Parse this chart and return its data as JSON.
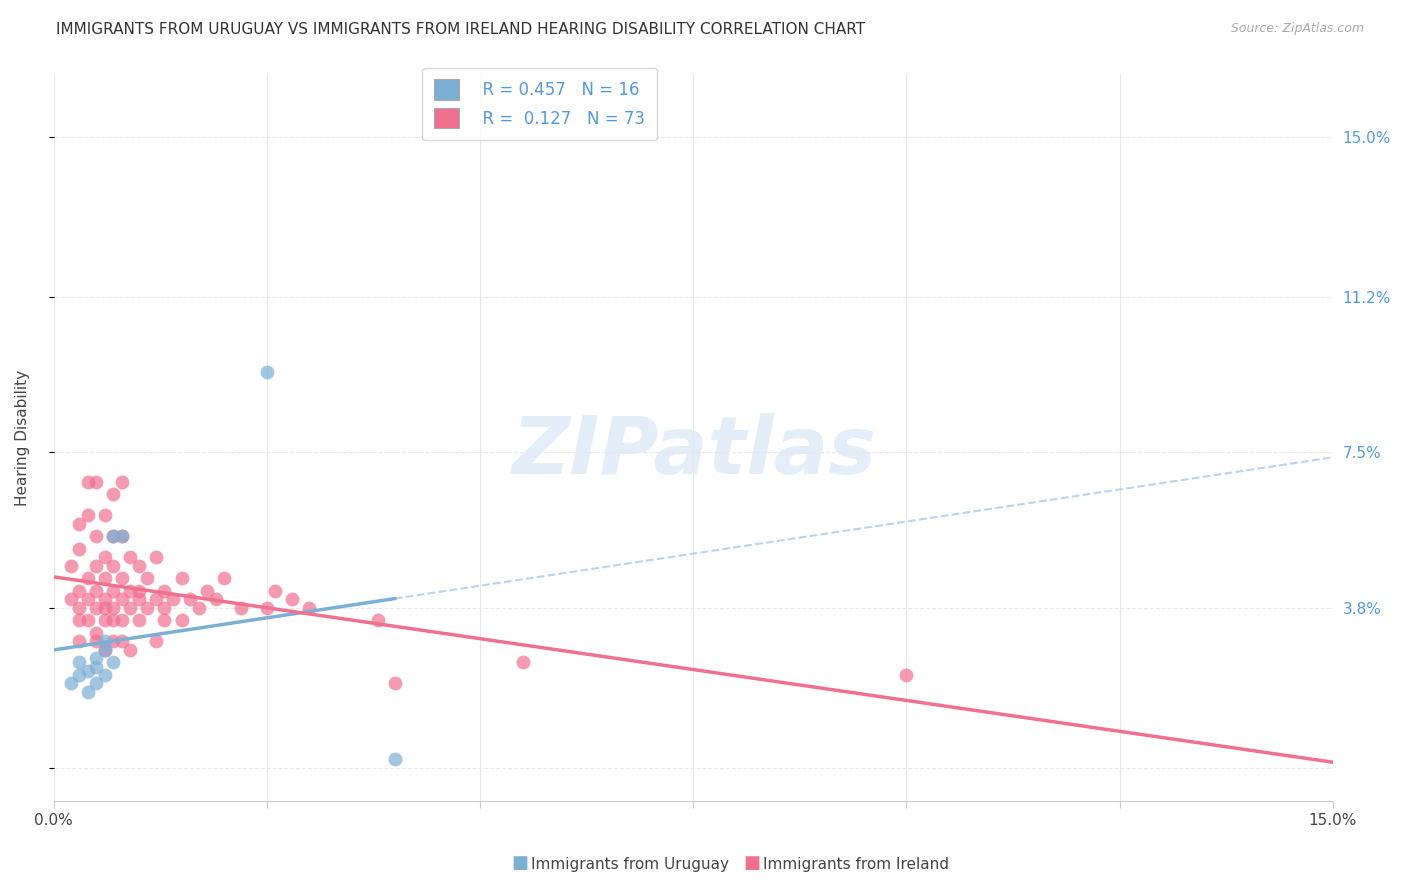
{
  "title": "IMMIGRANTS FROM URUGUAY VS IMMIGRANTS FROM IRELAND HEARING DISABILITY CORRELATION CHART",
  "source": "Source: ZipAtlas.com",
  "ylabel": "Hearing Disability",
  "xlim": [
    0.0,
    0.15
  ],
  "ylim": [
    -0.008,
    0.165
  ],
  "yticks": [
    0.0,
    0.038,
    0.075,
    0.112,
    0.15
  ],
  "ytick_labels": [
    "",
    "3.8%",
    "7.5%",
    "11.2%",
    "15.0%"
  ],
  "xticks": [
    0.0,
    0.025,
    0.05,
    0.075,
    0.1,
    0.125,
    0.15
  ],
  "xtick_labels": [
    "0.0%",
    "",
    "",
    "",
    "",
    "",
    "15.0%"
  ],
  "watermark": "ZIPatlas",
  "color_uruguay": "#7bafd4",
  "color_ireland": "#f07090",
  "background_color": "#ffffff",
  "grid_color": "#e8e8e8",
  "uruguay_scatter": [
    [
      0.002,
      0.02
    ],
    [
      0.003,
      0.022
    ],
    [
      0.003,
      0.025
    ],
    [
      0.004,
      0.018
    ],
    [
      0.004,
      0.023
    ],
    [
      0.005,
      0.02
    ],
    [
      0.005,
      0.024
    ],
    [
      0.005,
      0.026
    ],
    [
      0.006,
      0.022
    ],
    [
      0.006,
      0.028
    ],
    [
      0.006,
      0.03
    ],
    [
      0.007,
      0.025
    ],
    [
      0.007,
      0.055
    ],
    [
      0.008,
      0.055
    ],
    [
      0.025,
      0.094
    ],
    [
      0.04,
      0.002
    ]
  ],
  "ireland_scatter": [
    [
      0.002,
      0.048
    ],
    [
      0.002,
      0.04
    ],
    [
      0.003,
      0.035
    ],
    [
      0.003,
      0.042
    ],
    [
      0.003,
      0.052
    ],
    [
      0.003,
      0.03
    ],
    [
      0.003,
      0.058
    ],
    [
      0.003,
      0.038
    ],
    [
      0.004,
      0.06
    ],
    [
      0.004,
      0.045
    ],
    [
      0.004,
      0.068
    ],
    [
      0.004,
      0.04
    ],
    [
      0.004,
      0.035
    ],
    [
      0.005,
      0.038
    ],
    [
      0.005,
      0.042
    ],
    [
      0.005,
      0.03
    ],
    [
      0.005,
      0.055
    ],
    [
      0.005,
      0.048
    ],
    [
      0.005,
      0.032
    ],
    [
      0.005,
      0.068
    ],
    [
      0.006,
      0.035
    ],
    [
      0.006,
      0.04
    ],
    [
      0.006,
      0.045
    ],
    [
      0.006,
      0.05
    ],
    [
      0.006,
      0.028
    ],
    [
      0.006,
      0.038
    ],
    [
      0.006,
      0.06
    ],
    [
      0.007,
      0.035
    ],
    [
      0.007,
      0.042
    ],
    [
      0.007,
      0.048
    ],
    [
      0.007,
      0.03
    ],
    [
      0.007,
      0.055
    ],
    [
      0.007,
      0.065
    ],
    [
      0.007,
      0.038
    ],
    [
      0.008,
      0.04
    ],
    [
      0.008,
      0.035
    ],
    [
      0.008,
      0.045
    ],
    [
      0.008,
      0.03
    ],
    [
      0.008,
      0.055
    ],
    [
      0.008,
      0.068
    ],
    [
      0.009,
      0.038
    ],
    [
      0.009,
      0.042
    ],
    [
      0.009,
      0.05
    ],
    [
      0.009,
      0.028
    ],
    [
      0.01,
      0.04
    ],
    [
      0.01,
      0.035
    ],
    [
      0.01,
      0.048
    ],
    [
      0.01,
      0.042
    ],
    [
      0.011,
      0.038
    ],
    [
      0.011,
      0.045
    ],
    [
      0.012,
      0.04
    ],
    [
      0.012,
      0.05
    ],
    [
      0.012,
      0.03
    ],
    [
      0.013,
      0.042
    ],
    [
      0.013,
      0.038
    ],
    [
      0.013,
      0.035
    ],
    [
      0.014,
      0.04
    ],
    [
      0.015,
      0.045
    ],
    [
      0.015,
      0.035
    ],
    [
      0.016,
      0.04
    ],
    [
      0.017,
      0.038
    ],
    [
      0.018,
      0.042
    ],
    [
      0.019,
      0.04
    ],
    [
      0.02,
      0.045
    ],
    [
      0.022,
      0.038
    ],
    [
      0.025,
      0.038
    ],
    [
      0.026,
      0.042
    ],
    [
      0.028,
      0.04
    ],
    [
      0.03,
      0.038
    ],
    [
      0.038,
      0.035
    ],
    [
      0.04,
      0.02
    ],
    [
      0.055,
      0.025
    ],
    [
      0.1,
      0.022
    ]
  ]
}
